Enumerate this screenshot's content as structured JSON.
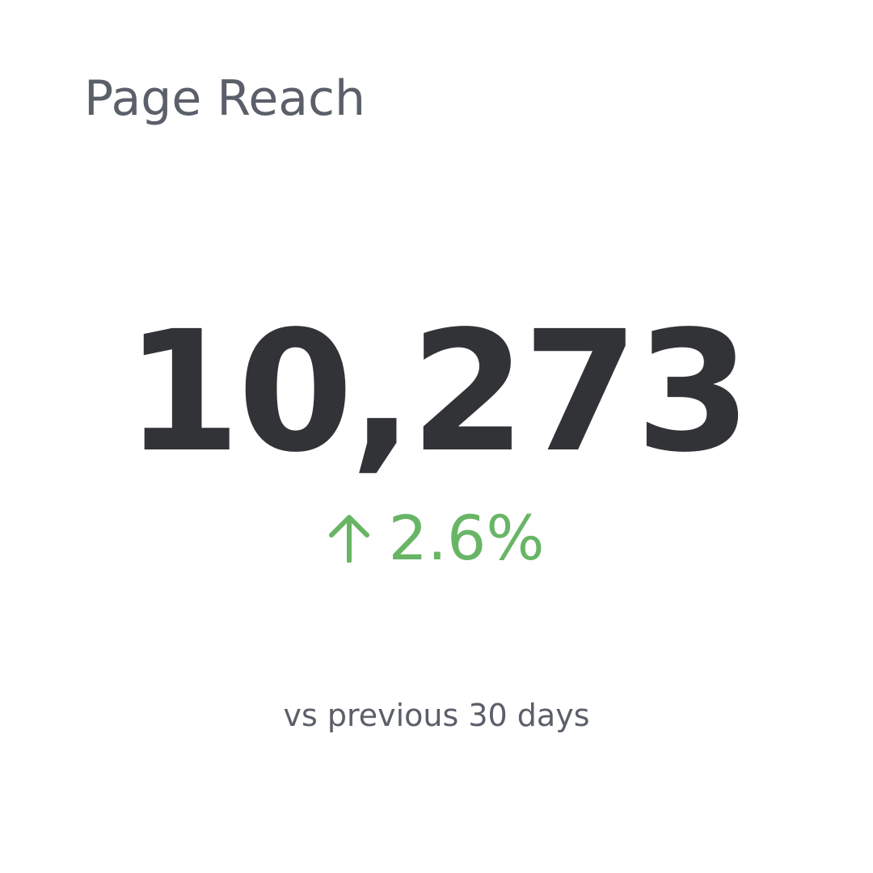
{
  "widget": {
    "title": "Page Reach",
    "value": "10,273",
    "change": "2.6%",
    "comparison": "vs previous 30 days"
  }
}
